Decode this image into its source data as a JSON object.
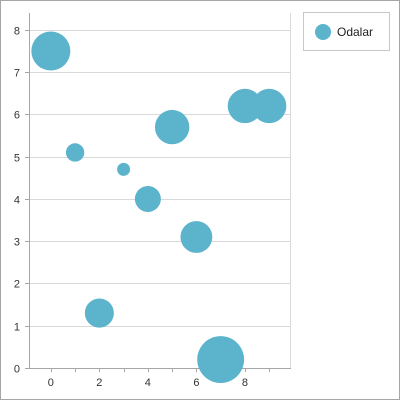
{
  "chart_data": {
    "type": "bubble",
    "x_ticks": [
      0,
      2,
      4,
      6,
      8
    ],
    "y_ticks": [
      0,
      1,
      2,
      3,
      4,
      5,
      6,
      7,
      8
    ],
    "xlim": [
      -0.9,
      9.9
    ],
    "ylim": [
      0,
      8.4
    ],
    "grid": "horizontal",
    "legend": "top-right",
    "series": [
      {
        "name": "Odalar",
        "color": "#5bb3cc",
        "points": [
          {
            "x": 0,
            "y": 7.5,
            "size": 9
          },
          {
            "x": 1,
            "y": 5.1,
            "size": 2
          },
          {
            "x": 2,
            "y": 1.3,
            "size": 5
          },
          {
            "x": 3,
            "y": 4.7,
            "size": 1
          },
          {
            "x": 4,
            "y": 4.0,
            "size": 4
          },
          {
            "x": 5,
            "y": 5.7,
            "size": 7
          },
          {
            "x": 6,
            "y": 3.1,
            "size": 6
          },
          {
            "x": 7,
            "y": 0.2,
            "size": 13
          },
          {
            "x": 8,
            "y": 6.2,
            "size": 7
          },
          {
            "x": 9,
            "y": 6.2,
            "size": 7
          }
        ]
      }
    ]
  }
}
